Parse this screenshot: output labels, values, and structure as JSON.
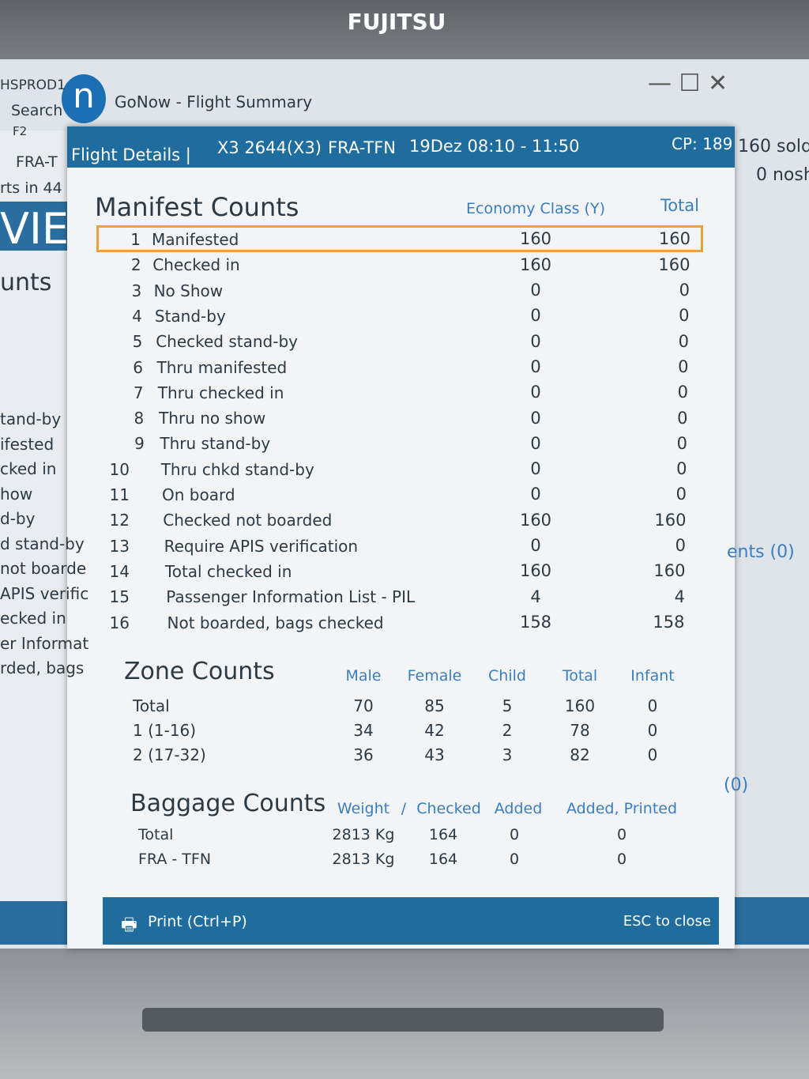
{
  "monitor": {
    "brand": "FUJITSU"
  },
  "background": {
    "top_left": [
      "HSPROD1",
      "Search",
      "F2"
    ],
    "route": "FRA-T",
    "sub": "rts in 44",
    "big": "VIE",
    "counts": "unts",
    "left_list": [
      "tand-by",
      "ifested",
      "cked in",
      "how",
      "d-by",
      "d stand-by",
      "not boarde",
      "APIS verific",
      "ecked in",
      "er Informat",
      "rded, bags"
    ],
    "right": [
      "160 sold",
      "0 nosh"
    ],
    "right_mid": "ents (0)",
    "right_low": "(0)"
  },
  "window": {
    "title": "GoNow - Flight Summary"
  },
  "header": {
    "label": "Flight Details |",
    "flight": "X3 2644(X3)",
    "route": "FRA-TFN",
    "time": "19Dez 08:10 - 11:50",
    "cp": "CP: 189"
  },
  "manifest": {
    "title": "Manifest Counts",
    "columns": [
      "Economy Class (Y)",
      "Total"
    ],
    "rows": [
      [
        1,
        "Manifested",
        160,
        160
      ],
      [
        2,
        "Checked in",
        160,
        160
      ],
      [
        3,
        "No Show",
        0,
        0
      ],
      [
        4,
        "Stand-by",
        0,
        0
      ],
      [
        5,
        "Checked stand-by",
        0,
        0
      ],
      [
        6,
        "Thru manifested",
        0,
        0
      ],
      [
        7,
        "Thru checked in",
        0,
        0
      ],
      [
        8,
        "Thru no show",
        0,
        0
      ],
      [
        9,
        "Thru stand-by",
        0,
        0
      ],
      [
        10,
        "Thru chkd stand-by",
        0,
        0
      ],
      [
        11,
        "On board",
        0,
        0
      ],
      [
        12,
        "Checked not boarded",
        160,
        160
      ],
      [
        13,
        "Require APIS verification",
        0,
        0
      ],
      [
        14,
        "Total checked in",
        160,
        160
      ],
      [
        15,
        "Passenger Information List - PIL",
        4,
        4
      ],
      [
        16,
        "Not boarded, bags checked",
        158,
        158
      ]
    ]
  },
  "zones": {
    "title": "Zone Counts",
    "columns": [
      "Male",
      "Female",
      "Child",
      "Total",
      "Infant"
    ],
    "rows": [
      [
        "Total",
        70,
        85,
        5,
        160,
        0
      ],
      [
        "1 (1-16)",
        34,
        42,
        2,
        78,
        0
      ],
      [
        "2 (17-32)",
        36,
        43,
        3,
        82,
        0
      ]
    ]
  },
  "baggage": {
    "title": "Baggage Counts",
    "columns": [
      "Weight",
      "/",
      "Checked",
      "Added",
      "Added, Printed"
    ],
    "rows": [
      [
        "Total",
        "2813 Kg",
        164,
        0,
        0
      ],
      [
        "FRA - TFN",
        "2813 Kg",
        164,
        0,
        0
      ]
    ]
  },
  "footer": {
    "print": "Print (Ctrl+P)",
    "close": "ESC to close"
  }
}
